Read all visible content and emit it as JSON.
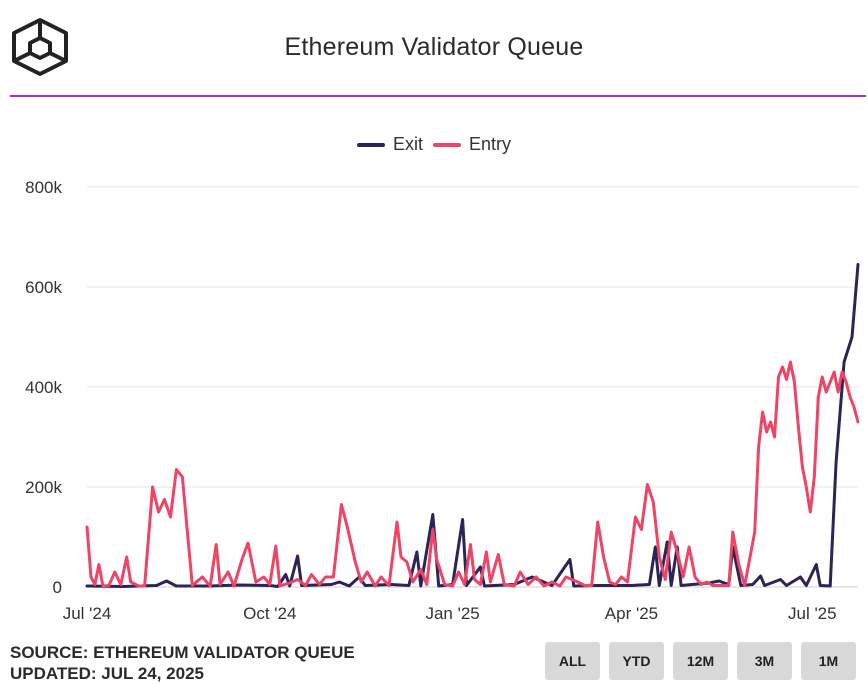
{
  "title": "Ethereum Validator Queue",
  "footer": {
    "source": "SOURCE: ETHEREUM VALIDATOR QUEUE",
    "updated": "UPDATED: JUL 24, 2025"
  },
  "range_buttons": [
    "ALL",
    "YTD",
    "12M",
    "3M",
    "1M"
  ],
  "colors": {
    "exit": "#2c2456",
    "entry": "#ee4466",
    "divider": "#a230d8",
    "grid": "#e6e6e6"
  },
  "chart_data": {
    "type": "line",
    "title": "Ethereum Validator Queue",
    "xlabel": "",
    "ylabel": "",
    "x_range": [
      "2024-07-01",
      "2025-07-24"
    ],
    "ylim": [
      0,
      800000
    ],
    "y_ticks": [
      0,
      200000,
      400000,
      600000,
      800000
    ],
    "y_tick_labels": [
      "0",
      "200k",
      "400k",
      "600k",
      "800k"
    ],
    "x_ticks": [
      "2024-07-01",
      "2024-10-01",
      "2025-01-01",
      "2025-04-01",
      "2025-07-01"
    ],
    "x_tick_labels": [
      "Jul '24",
      "Oct '24",
      "Jan '25",
      "Apr '25",
      "Jul '25"
    ],
    "grid": true,
    "legend": "top-center",
    "series": [
      {
        "name": "Exit",
        "color": "#2c2456",
        "points": [
          [
            "2024-07-01",
            2000
          ],
          [
            "2024-07-20",
            1000
          ],
          [
            "2024-08-05",
            3000
          ],
          [
            "2024-08-10",
            12000
          ],
          [
            "2024-08-15",
            2000
          ],
          [
            "2024-09-01",
            2000
          ],
          [
            "2024-09-15",
            4000
          ],
          [
            "2024-10-01",
            3000
          ],
          [
            "2024-10-05",
            1000
          ],
          [
            "2024-10-09",
            25000
          ],
          [
            "2024-10-11",
            2000
          ],
          [
            "2024-10-15",
            62000
          ],
          [
            "2024-10-17",
            3000
          ],
          [
            "2024-11-01",
            5000
          ],
          [
            "2024-11-05",
            10000
          ],
          [
            "2024-11-10",
            2000
          ],
          [
            "2024-11-15",
            20000
          ],
          [
            "2024-11-18",
            3000
          ],
          [
            "2024-12-01",
            5000
          ],
          [
            "2024-12-10",
            3000
          ],
          [
            "2024-12-14",
            70000
          ],
          [
            "2024-12-16",
            2000
          ],
          [
            "2024-12-22",
            145000
          ],
          [
            "2024-12-25",
            2000
          ],
          [
            "2025-01-01",
            5000
          ],
          [
            "2025-01-06",
            135000
          ],
          [
            "2025-01-08",
            3000
          ],
          [
            "2025-01-15",
            40000
          ],
          [
            "2025-01-17",
            2000
          ],
          [
            "2025-02-01",
            5000
          ],
          [
            "2025-02-10",
            20000
          ],
          [
            "2025-02-20",
            3000
          ],
          [
            "2025-03-01",
            55000
          ],
          [
            "2025-03-03",
            2000
          ],
          [
            "2025-03-15",
            3000
          ],
          [
            "2025-04-01",
            3000
          ],
          [
            "2025-04-10",
            5000
          ],
          [
            "2025-04-13",
            80000
          ],
          [
            "2025-04-15",
            3000
          ],
          [
            "2025-04-19",
            90000
          ],
          [
            "2025-04-21",
            3000
          ],
          [
            "2025-04-24",
            80000
          ],
          [
            "2025-04-26",
            3000
          ],
          [
            "2025-05-10",
            8000
          ],
          [
            "2025-05-15",
            12000
          ],
          [
            "2025-05-20",
            5000
          ],
          [
            "2025-05-22",
            80000
          ],
          [
            "2025-05-26",
            3000
          ],
          [
            "2025-06-01",
            5000
          ],
          [
            "2025-06-05",
            22000
          ],
          [
            "2025-06-07",
            3000
          ],
          [
            "2025-06-15",
            15000
          ],
          [
            "2025-06-18",
            3000
          ],
          [
            "2025-06-25",
            20000
          ],
          [
            "2025-06-28",
            3000
          ],
          [
            "2025-07-03",
            45000
          ],
          [
            "2025-07-05",
            3000
          ],
          [
            "2025-07-10",
            2000
          ],
          [
            "2025-07-13",
            250000
          ],
          [
            "2025-07-17",
            450000
          ],
          [
            "2025-07-21",
            500000
          ],
          [
            "2025-07-24",
            645000
          ]
        ]
      },
      {
        "name": "Entry",
        "color": "#ee4466",
        "points": [
          [
            "2024-07-01",
            120000
          ],
          [
            "2024-07-03",
            20000
          ],
          [
            "2024-07-05",
            5000
          ],
          [
            "2024-07-07",
            45000
          ],
          [
            "2024-07-09",
            2000
          ],
          [
            "2024-07-12",
            3000
          ],
          [
            "2024-07-15",
            30000
          ],
          [
            "2024-07-18",
            5000
          ],
          [
            "2024-07-21",
            60000
          ],
          [
            "2024-07-23",
            10000
          ],
          [
            "2024-07-27",
            2000
          ],
          [
            "2024-07-30",
            2000
          ],
          [
            "2024-08-03",
            200000
          ],
          [
            "2024-08-06",
            150000
          ],
          [
            "2024-08-09",
            175000
          ],
          [
            "2024-08-12",
            140000
          ],
          [
            "2024-08-15",
            235000
          ],
          [
            "2024-08-18",
            220000
          ],
          [
            "2024-08-21",
            90000
          ],
          [
            "2024-08-23",
            3000
          ],
          [
            "2024-08-28",
            20000
          ],
          [
            "2024-09-01",
            2000
          ],
          [
            "2024-09-04",
            85000
          ],
          [
            "2024-09-06",
            5000
          ],
          [
            "2024-09-10",
            30000
          ],
          [
            "2024-09-13",
            2000
          ],
          [
            "2024-09-17",
            55000
          ],
          [
            "2024-09-20",
            88000
          ],
          [
            "2024-09-24",
            10000
          ],
          [
            "2024-09-28",
            20000
          ],
          [
            "2024-10-01",
            5000
          ],
          [
            "2024-10-04",
            82000
          ],
          [
            "2024-10-06",
            2000
          ],
          [
            "2024-10-11",
            8000
          ],
          [
            "2024-10-15",
            15000
          ],
          [
            "2024-10-19",
            3000
          ],
          [
            "2024-10-22",
            25000
          ],
          [
            "2024-10-26",
            5000
          ],
          [
            "2024-10-29",
            20000
          ],
          [
            "2024-11-02",
            20000
          ],
          [
            "2024-11-06",
            165000
          ],
          [
            "2024-11-09",
            120000
          ],
          [
            "2024-11-13",
            50000
          ],
          [
            "2024-11-16",
            10000
          ],
          [
            "2024-11-19",
            30000
          ],
          [
            "2024-11-23",
            2000
          ],
          [
            "2024-11-26",
            20000
          ],
          [
            "2024-11-30",
            3000
          ],
          [
            "2024-12-04",
            130000
          ],
          [
            "2024-12-06",
            60000
          ],
          [
            "2024-12-09",
            50000
          ],
          [
            "2024-12-12",
            10000
          ],
          [
            "2024-12-16",
            35000
          ],
          [
            "2024-12-19",
            5000
          ],
          [
            "2024-12-22",
            115000
          ],
          [
            "2024-12-24",
            55000
          ],
          [
            "2024-12-28",
            5000
          ],
          [
            "2025-01-01",
            2000
          ],
          [
            "2025-01-04",
            30000
          ],
          [
            "2025-01-07",
            5000
          ],
          [
            "2025-01-10",
            85000
          ],
          [
            "2025-01-12",
            15000
          ],
          [
            "2025-01-15",
            5000
          ],
          [
            "2025-01-18",
            70000
          ],
          [
            "2025-01-20",
            10000
          ],
          [
            "2025-01-24",
            65000
          ],
          [
            "2025-01-27",
            5000
          ],
          [
            "2025-02-01",
            2000
          ],
          [
            "2025-02-04",
            30000
          ],
          [
            "2025-02-08",
            5000
          ],
          [
            "2025-02-12",
            20000
          ],
          [
            "2025-02-16",
            2000
          ],
          [
            "2025-02-20",
            10000
          ],
          [
            "2025-02-24",
            2000
          ],
          [
            "2025-02-27",
            20000
          ],
          [
            "2025-03-02",
            15000
          ],
          [
            "2025-03-05",
            10000
          ],
          [
            "2025-03-09",
            2000
          ],
          [
            "2025-03-12",
            3000
          ],
          [
            "2025-03-15",
            130000
          ],
          [
            "2025-03-18",
            60000
          ],
          [
            "2025-03-21",
            10000
          ],
          [
            "2025-03-24",
            5000
          ],
          [
            "2025-03-27",
            20000
          ],
          [
            "2025-03-30",
            10000
          ],
          [
            "2025-04-03",
            140000
          ],
          [
            "2025-04-06",
            115000
          ],
          [
            "2025-04-09",
            205000
          ],
          [
            "2025-04-12",
            170000
          ],
          [
            "2025-04-15",
            60000
          ],
          [
            "2025-04-18",
            15000
          ],
          [
            "2025-04-21",
            110000
          ],
          [
            "2025-04-24",
            70000
          ],
          [
            "2025-04-27",
            20000
          ],
          [
            "2025-04-30",
            80000
          ],
          [
            "2025-05-03",
            20000
          ],
          [
            "2025-05-06",
            5000
          ],
          [
            "2025-05-09",
            10000
          ],
          [
            "2025-05-12",
            3000
          ],
          [
            "2025-05-16",
            3000
          ],
          [
            "2025-05-20",
            3000
          ],
          [
            "2025-05-22",
            110000
          ],
          [
            "2025-05-25",
            45000
          ],
          [
            "2025-05-28",
            3000
          ],
          [
            "2025-06-02",
            110000
          ],
          [
            "2025-06-04",
            280000
          ],
          [
            "2025-06-06",
            350000
          ],
          [
            "2025-06-08",
            310000
          ],
          [
            "2025-06-10",
            330000
          ],
          [
            "2025-06-12",
            300000
          ],
          [
            "2025-06-14",
            420000
          ],
          [
            "2025-06-16",
            440000
          ],
          [
            "2025-06-18",
            415000
          ],
          [
            "2025-06-20",
            450000
          ],
          [
            "2025-06-22",
            410000
          ],
          [
            "2025-06-24",
            320000
          ],
          [
            "2025-06-26",
            240000
          ],
          [
            "2025-06-28",
            200000
          ],
          [
            "2025-06-30",
            150000
          ],
          [
            "2025-07-02",
            220000
          ],
          [
            "2025-07-04",
            380000
          ],
          [
            "2025-07-06",
            420000
          ],
          [
            "2025-07-08",
            390000
          ],
          [
            "2025-07-10",
            410000
          ],
          [
            "2025-07-12",
            430000
          ],
          [
            "2025-07-14",
            390000
          ],
          [
            "2025-07-16",
            430000
          ],
          [
            "2025-07-18",
            410000
          ],
          [
            "2025-07-20",
            380000
          ],
          [
            "2025-07-22",
            360000
          ],
          [
            "2025-07-24",
            330000
          ]
        ]
      }
    ]
  }
}
